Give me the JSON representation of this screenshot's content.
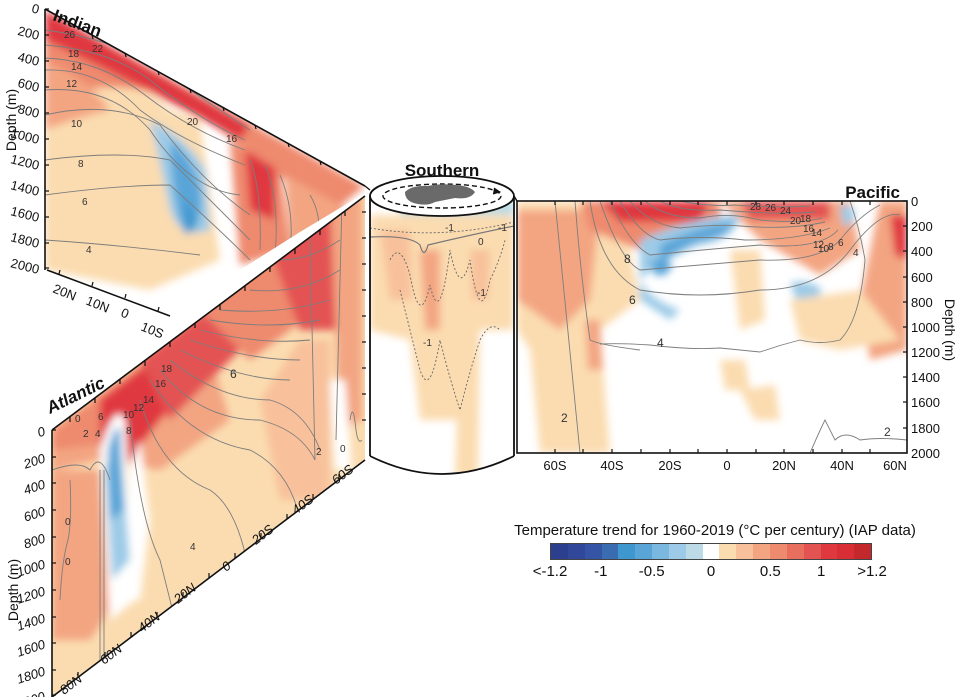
{
  "chart_data": {
    "type": "heatmap",
    "title": "Temperature trend for 1960-2019 (°C per century) (IAP data)",
    "description": "Zonal-mean ocean temperature trend sections (0-2000 m) for four basins, filled colors = trend, grey contours = climatological temperature (°C)",
    "colorbar": {
      "label": "Temperature trend for 1960-2019 (°C per century) (IAP data)",
      "ticks": [
        "<-1.2",
        "-1",
        "-0.5",
        "0",
        "0.5",
        "1",
        ">1.2"
      ],
      "range": [
        -1.2,
        1.2
      ],
      "segments": 19,
      "colors": [
        "#2b3f8e",
        "#30479a",
        "#3554a6",
        "#3a6cb2",
        "#3f97cf",
        "#5aa5d8",
        "#7ab8e0",
        "#9dcbe7",
        "#bcdbe6",
        "#ffffff",
        "#fbdcb0",
        "#f8c19b",
        "#f3a582",
        "#ee8a6e",
        "#e86f5e",
        "#e35352",
        "#e0383f",
        "#d92e35",
        "#c3282c"
      ]
    },
    "panels": [
      {
        "name": "Indian",
        "xlabel_ticks": [
          "20N",
          "10N",
          "0",
          "10S"
        ],
        "ylabel": "Depth (m)",
        "yticks": [
          0,
          200,
          400,
          600,
          800,
          1000,
          1200,
          1400,
          1600,
          1800,
          2000
        ],
        "contour_labels": [
          "26",
          "22",
          "18",
          "14",
          "12",
          "10",
          "8",
          "6",
          "4",
          "20",
          "16"
        ],
        "features": "Strong warming (>1) near surface and along south flank; cooling (-0.5 to -1) band 800-1900 m near 5S-15S"
      },
      {
        "name": "Atlantic",
        "xlabel_ticks": [
          "80N",
          "60N",
          "40N",
          "20N",
          "0",
          "20S",
          "40S",
          "60S"
        ],
        "ylabel": "Depth (m)",
        "yticks": [
          0,
          200,
          400,
          600,
          800,
          1000,
          1200,
          1400,
          1600,
          1800,
          2000
        ],
        "contour_labels": [
          "0",
          "2",
          "4",
          "6",
          "8",
          "10",
          "12",
          "14",
          "16",
          "18",
          "20",
          "6",
          "4",
          "2",
          "0"
        ],
        "features": "Cooling column 50-65N from surface to ~1600 m; warming in upper ocean 40N-30S"
      },
      {
        "name": "Southern",
        "contour_labels": [
          "-1",
          "0",
          "-1",
          "-1",
          "-1"
        ],
        "features": "Weak warming (0.1-0.5) in upper 1500 m; slight cooling at surface"
      },
      {
        "name": "Pacific",
        "xlabel_ticks": [
          "60S",
          "40S",
          "20S",
          "0",
          "20N",
          "40N",
          "60N"
        ],
        "ylabel": "Depth (m)",
        "yticks": [
          0,
          200,
          400,
          600,
          800,
          1000,
          1200,
          1400,
          1600,
          1800,
          2000
        ],
        "contour_labels": [
          "28",
          "26",
          "24",
          "20",
          "18",
          "16",
          "14",
          "12",
          "10",
          "8",
          "6",
          "4",
          "8",
          "6",
          "4",
          "2",
          "2"
        ],
        "features": "Surface warming 50S-10S and 20N-60N; cooling 100-700 m between 25S and 5N; deep ocean mostly neutral"
      }
    ]
  },
  "labels": {
    "indian": "Indian",
    "atlantic": "Atlantic",
    "southern": "Southern",
    "pacific": "Pacific",
    "depth": "Depth (m)"
  },
  "colorbar_title": "Temperature trend for 1960-2019 (°C per century) (IAP data)",
  "colorbar_ticks": [
    {
      "label": "<-1.2",
      "pos": 0.0
    },
    {
      "label": "-1",
      "pos": 0.1579
    },
    {
      "label": "-0.5",
      "pos": 0.3158
    },
    {
      "label": "0",
      "pos": 0.5
    },
    {
      "label": "0.5",
      "pos": 0.6842
    },
    {
      "label": "1",
      "pos": 0.8421
    },
    {
      "label": ">1.2",
      "pos": 1.0
    }
  ]
}
